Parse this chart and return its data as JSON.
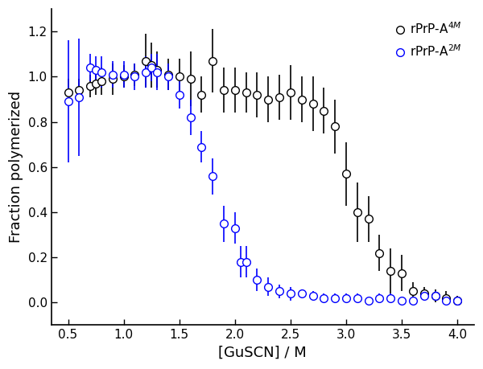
{
  "black_x": [
    0.5,
    0.6,
    0.7,
    0.75,
    0.8,
    0.9,
    1.0,
    1.1,
    1.2,
    1.25,
    1.3,
    1.4,
    1.5,
    1.6,
    1.7,
    1.8,
    1.9,
    2.0,
    2.1,
    2.2,
    2.3,
    2.4,
    2.5,
    2.6,
    2.7,
    2.8,
    2.9,
    3.0,
    3.1,
    3.2,
    3.3,
    3.4,
    3.5,
    3.6,
    3.7,
    3.8,
    3.9,
    4.0
  ],
  "black_y": [
    0.93,
    0.94,
    0.96,
    0.97,
    0.98,
    0.99,
    1.0,
    1.01,
    1.07,
    1.05,
    1.03,
    1.01,
    1.0,
    0.99,
    0.92,
    1.07,
    0.94,
    0.94,
    0.93,
    0.92,
    0.9,
    0.91,
    0.93,
    0.9,
    0.88,
    0.85,
    0.78,
    0.57,
    0.4,
    0.37,
    0.22,
    0.14,
    0.13,
    0.05,
    0.04,
    0.03,
    0.02,
    0.01
  ],
  "black_yerr": [
    0.06,
    0.05,
    0.05,
    0.05,
    0.06,
    0.07,
    0.05,
    0.05,
    0.12,
    0.1,
    0.08,
    0.07,
    0.08,
    0.12,
    0.08,
    0.14,
    0.1,
    0.1,
    0.09,
    0.1,
    0.1,
    0.1,
    0.12,
    0.1,
    0.12,
    0.1,
    0.12,
    0.14,
    0.13,
    0.1,
    0.08,
    0.1,
    0.08,
    0.04,
    0.03,
    0.03,
    0.03,
    0.02
  ],
  "blue_x": [
    0.5,
    0.6,
    0.7,
    0.75,
    0.8,
    0.9,
    1.0,
    1.1,
    1.2,
    1.25,
    1.3,
    1.4,
    1.5,
    1.6,
    1.7,
    1.8,
    1.9,
    2.0,
    2.05,
    2.1,
    2.2,
    2.3,
    2.4,
    2.5,
    2.6,
    2.7,
    2.8,
    2.9,
    3.0,
    3.1,
    3.2,
    3.3,
    3.4,
    3.5,
    3.6,
    3.7,
    3.8,
    3.9,
    4.0
  ],
  "blue_y": [
    0.89,
    0.91,
    1.04,
    1.03,
    1.02,
    1.01,
    1.01,
    1.0,
    1.02,
    1.04,
    1.02,
    1.0,
    0.92,
    0.82,
    0.69,
    0.56,
    0.35,
    0.33,
    0.18,
    0.18,
    0.1,
    0.07,
    0.05,
    0.04,
    0.04,
    0.03,
    0.02,
    0.02,
    0.02,
    0.02,
    0.01,
    0.02,
    0.02,
    0.01,
    0.01,
    0.03,
    0.03,
    0.01,
    0.01
  ],
  "blue_yerr": [
    0.27,
    0.26,
    0.06,
    0.06,
    0.07,
    0.06,
    0.06,
    0.06,
    0.07,
    0.06,
    0.08,
    0.06,
    0.06,
    0.08,
    0.07,
    0.08,
    0.08,
    0.07,
    0.07,
    0.07,
    0.05,
    0.04,
    0.03,
    0.03,
    0.02,
    0.02,
    0.02,
    0.02,
    0.02,
    0.02,
    0.01,
    0.02,
    0.02,
    0.01,
    0.01,
    0.02,
    0.02,
    0.01,
    0.01
  ],
  "xlabel": "[GuSCN] / M",
  "ylabel": "Fraction polymerized",
  "xlim": [
    0.35,
    4.15
  ],
  "ylim": [
    -0.1,
    1.3
  ],
  "xticks": [
    0.5,
    1.0,
    1.5,
    2.0,
    2.5,
    3.0,
    3.5,
    4.0
  ],
  "yticks": [
    0.0,
    0.2,
    0.4,
    0.6,
    0.8,
    1.0,
    1.2
  ],
  "black_color": "#000000",
  "blue_color": "#0000ff",
  "legend_labels": [
    "rPrP-A$^{4M}$",
    "rPrP-A$^{2M}$"
  ],
  "marker_size": 7,
  "linewidth": 1.2
}
